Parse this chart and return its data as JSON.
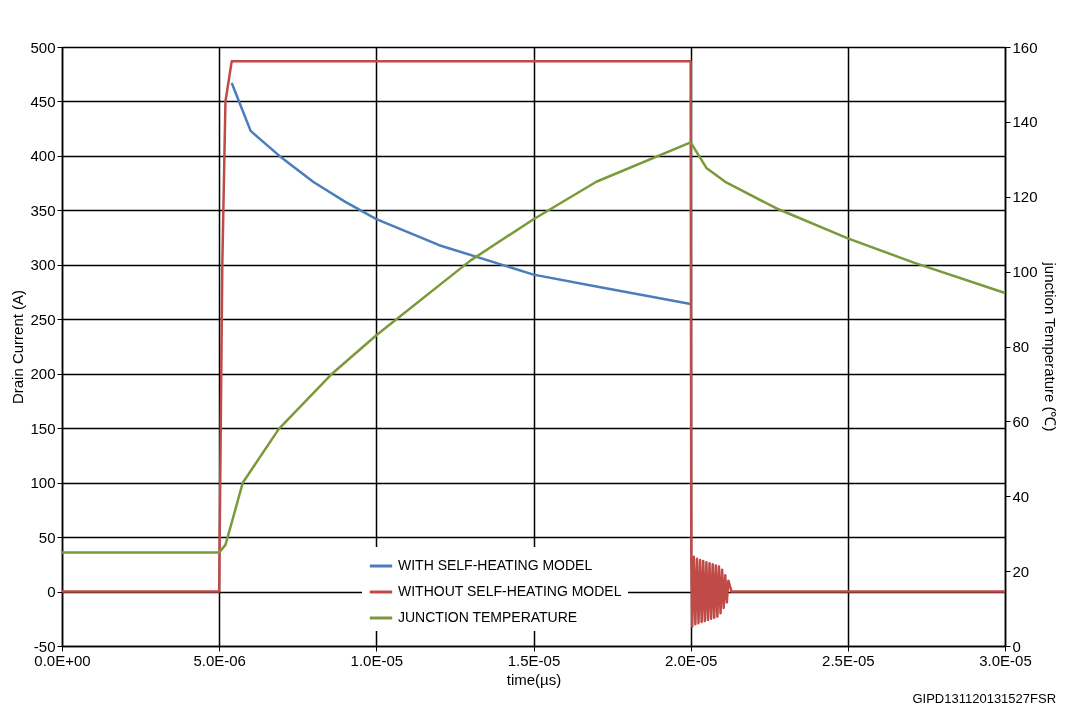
{
  "chart_data": {
    "type": "line",
    "xlabel": "time(µs)",
    "ylabel": "Drain Current (A)",
    "y2label": "junction Temperature (℃)",
    "xlim": [
      0,
      3e-05
    ],
    "xticks": [
      {
        "value": 0,
        "label": "0.0E+00"
      },
      {
        "value": 5e-06,
        "label": "5.0E-06"
      },
      {
        "value": 1e-05,
        "label": "1.0E-05"
      },
      {
        "value": 1.5e-05,
        "label": "1.5E-05"
      },
      {
        "value": 2e-05,
        "label": "2.0E-05"
      },
      {
        "value": 2.5e-05,
        "label": "2.5E-05"
      },
      {
        "value": 3e-05,
        "label": "3.0E-05"
      }
    ],
    "ylim": [
      -50,
      500
    ],
    "yticks": [
      -50,
      0,
      50,
      100,
      150,
      200,
      250,
      300,
      350,
      400,
      450,
      500
    ],
    "y2lim": [
      0,
      160
    ],
    "y2ticks": [
      0,
      20,
      40,
      60,
      80,
      100,
      120,
      140,
      160
    ],
    "grid": true,
    "legend": "bottom",
    "line_style": "solid",
    "marker": "none",
    "annotations": [
      "GIPD131120131527FSR"
    ],
    "series": [
      {
        "name": "WITH SELF-HEATING MODEL",
        "color": "#4a7ebb",
        "x": [
          5.4e-06,
          6e-06,
          7e-06,
          8e-06,
          9e-06,
          1e-05,
          1.2e-05,
          1.5e-05,
          1.7e-05,
          2e-05
        ],
        "values": [
          467,
          423,
          398,
          376,
          358,
          342,
          318,
          291,
          280,
          264
        ]
      },
      {
        "name": "WITHOUT SELF-HEATING MODEL",
        "color": "#be4b48",
        "x": [
          0,
          5e-06,
          5.1e-06,
          5.2e-06,
          5.4e-06,
          2e-05,
          2.002e-05,
          2.005e-05,
          2.01e-05,
          2.015e-05,
          2.02e-05,
          2.025e-05,
          2.03e-05,
          2.035e-05,
          2.04e-05,
          2.045e-05,
          2.05e-05,
          2.055e-05,
          2.06e-05,
          2.065e-05,
          2.07e-05,
          2.075e-05,
          2.08e-05,
          2.085e-05,
          2.09e-05,
          2.095e-05,
          2.1e-05,
          2.105e-05,
          2.11e-05,
          2.115e-05,
          2.12e-05,
          2.13e-05,
          3e-05
        ],
        "values": [
          0,
          0,
          300,
          450,
          487,
          487,
          30,
          -32,
          32,
          -30,
          30,
          -29,
          29,
          -28,
          28,
          -27,
          27,
          -26,
          26,
          -25,
          25,
          -24,
          24,
          -23,
          23,
          -20,
          20,
          -15,
          15,
          -10,
          10,
          0,
          0
        ]
      },
      {
        "name": "JUNCTION TEMPERATURE",
        "color": "#7a9a3a",
        "axis": "y2",
        "x": [
          0,
          5e-06,
          5.2e-06,
          5.5e-06,
          5.75e-06,
          6.9e-06,
          8.6e-06,
          1e-05,
          1.3e-05,
          1.5e-05,
          1.7e-05,
          2e-05,
          2.05e-05,
          2.11e-05,
          2.27e-05,
          2.5e-05,
          2.71e-05,
          3e-05
        ],
        "values": [
          25,
          25,
          27,
          36,
          43.6,
          58,
          72.8,
          83,
          103,
          114,
          124,
          134.5,
          127.7,
          124,
          117,
          108.9,
          102.4,
          94.3
        ]
      }
    ]
  }
}
